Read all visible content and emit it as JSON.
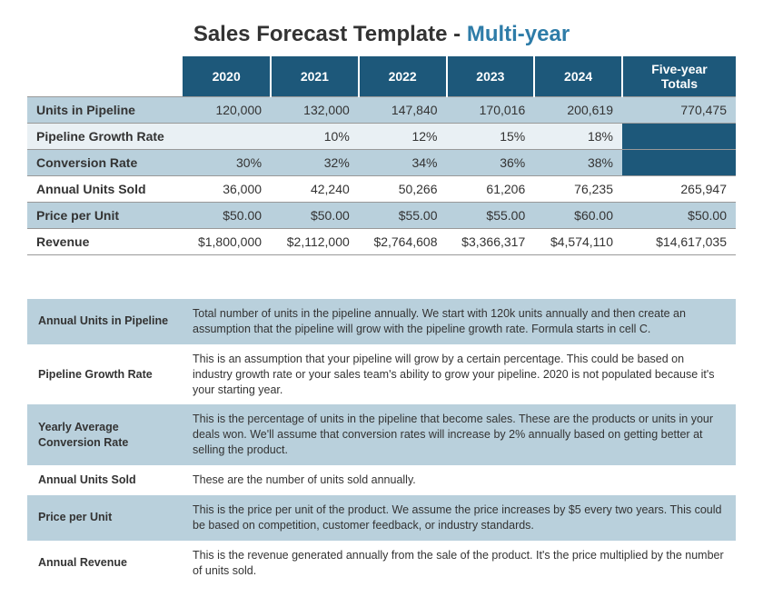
{
  "title": {
    "prefix": "Sales Forecast Template - ",
    "accent": "Multi-year"
  },
  "colors": {
    "header_bg": "#1d587a",
    "header_text": "#ffffff",
    "band_bg": "#b9d0dc",
    "light_bg": "#e9f0f4",
    "plain_bg": "#ffffff",
    "accent_text": "#2e7ca8",
    "body_text": "#333333",
    "row_border": "#999999"
  },
  "forecast": {
    "header": {
      "blank": "",
      "years": [
        "2020",
        "2021",
        "2022",
        "2023",
        "2024"
      ],
      "totals": "Five-year Totals"
    },
    "rows": [
      {
        "label": "Units in Pipeline",
        "values": [
          "120,000",
          "132,000",
          "147,840",
          "170,016",
          "200,619"
        ],
        "total": "770,475",
        "style": "band",
        "solid_total": false
      },
      {
        "label": "Pipeline Growth Rate",
        "values": [
          "",
          "10%",
          "12%",
          "15%",
          "18%"
        ],
        "total": "",
        "style": "light",
        "solid_total": true
      },
      {
        "label": "Conversion Rate",
        "values": [
          "30%",
          "32%",
          "34%",
          "36%",
          "38%"
        ],
        "total": "",
        "style": "band",
        "solid_total": true
      },
      {
        "label": "Annual Units Sold",
        "values": [
          "36,000",
          "42,240",
          "50,266",
          "61,206",
          "76,235"
        ],
        "total": "265,947",
        "style": "plain",
        "solid_total": false
      },
      {
        "label": "Price per Unit",
        "values": [
          "$50.00",
          "$50.00",
          "$55.00",
          "$55.00",
          "$60.00"
        ],
        "total": "$50.00",
        "style": "band",
        "solid_total": false
      },
      {
        "label": "Revenue",
        "values": [
          "$1,800,000",
          "$2,112,000",
          "$2,764,608",
          "$3,366,317",
          "$4,574,110"
        ],
        "total": "$14,617,035",
        "style": "plain",
        "solid_total": false
      }
    ]
  },
  "definitions": [
    {
      "term": "Annual Units in Pipeline",
      "desc": "Total number of units in the pipeline annually. We start with 120k units annually and then create an assumption that the pipeline will grow with the pipeline growth rate. Formula starts in cell C.",
      "shade": true
    },
    {
      "term": "Pipeline Growth Rate",
      "desc": "This is an assumption that your pipeline will grow by a certain percentage. This could be based on industry growth rate or your sales team's ability to grow your pipeline. 2020 is not populated because it's your starting year.",
      "shade": false
    },
    {
      "term": "Yearly Average Conversion Rate",
      "desc": "This is the percentage of units in the pipeline that become sales. These are the products or units in your deals won. We'll assume that conversion rates will increase by 2% annually based on getting better at selling the product.",
      "shade": true
    },
    {
      "term": "Annual Units Sold",
      "desc": "These are the number of units sold annually.",
      "shade": false
    },
    {
      "term": "Price per Unit",
      "desc": "This is the price per unit of the product. We assume the price increases by $5 every two years. This could be based on competition, customer feedback, or industry standards.",
      "shade": true
    },
    {
      "term": "Annual Revenue",
      "desc": "This is the revenue generated annually from the sale of the product. It's the price multiplied by the number of units sold.",
      "shade": false
    }
  ]
}
